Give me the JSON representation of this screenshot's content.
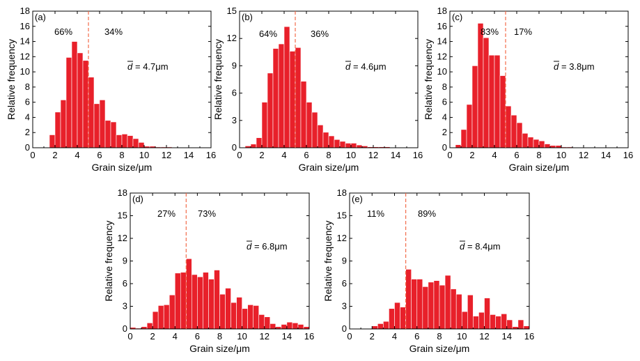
{
  "chart_data": [
    {
      "type": "bar",
      "panel_label": "(a)",
      "xlabel": "Grain size/μm",
      "ylabel": "Relative frequency",
      "xlim": [
        0,
        16
      ],
      "ylim": [
        0,
        18
      ],
      "xticks": [
        0,
        2,
        4,
        6,
        8,
        10,
        12,
        14,
        16
      ],
      "yticks": [
        0,
        2,
        4,
        6,
        8,
        10,
        12,
        14,
        16,
        18
      ],
      "bin_width": 0.5,
      "x": [
        1.75,
        2.25,
        2.75,
        3.25,
        3.75,
        4.25,
        4.75,
        5.25,
        5.75,
        6.25,
        6.75,
        7.25,
        7.75,
        8.25,
        8.75,
        9.25,
        9.75,
        10.25,
        10.75,
        11.25,
        11.75,
        12.25
      ],
      "values": [
        1.7,
        4.7,
        6.3,
        11.9,
        14.0,
        12.5,
        11.5,
        9.3,
        5.8,
        6.3,
        3.6,
        3.4,
        1.7,
        1.8,
        1.6,
        1.2,
        0.7,
        0.2,
        0.2,
        0.1,
        0.1,
        0.1
      ],
      "threshold": 5.0,
      "left_pct": "66%",
      "right_pct": "34%",
      "mean_label": "= 4.7μm",
      "mean_symbol": "d"
    },
    {
      "type": "bar",
      "panel_label": "(b)",
      "xlabel": "Grain size/μm",
      "ylabel": "Relative frequency",
      "xlim": [
        0,
        16
      ],
      "ylim": [
        0,
        15
      ],
      "xticks": [
        0,
        2,
        4,
        6,
        8,
        10,
        12,
        14,
        16
      ],
      "yticks": [
        0,
        3,
        6,
        9,
        12,
        15
      ],
      "bin_width": 0.5,
      "x": [
        0.75,
        1.25,
        1.75,
        2.25,
        2.75,
        3.25,
        3.75,
        4.25,
        4.75,
        5.25,
        5.75,
        6.25,
        6.75,
        7.25,
        7.75,
        8.25,
        8.75,
        9.25,
        9.75,
        10.25,
        10.75,
        11.25,
        11.75,
        12.25,
        12.75,
        13.25
      ],
      "values": [
        0.2,
        0.4,
        1.1,
        5.0,
        8.2,
        10.9,
        11.4,
        13.3,
        10.6,
        11.0,
        7.3,
        5.0,
        3.9,
        2.5,
        1.7,
        1.3,
        0.9,
        0.7,
        0.5,
        0.5,
        0.3,
        0.2,
        0.1,
        0.1,
        0.1,
        0.1
      ],
      "threshold": 5.0,
      "left_pct": "64%",
      "right_pct": "36%",
      "mean_label": "= 4.6μm",
      "mean_symbol": "d"
    },
    {
      "type": "bar",
      "panel_label": "(c)",
      "xlabel": "Grain size/μm",
      "ylabel": "Relative frequency",
      "xlim": [
        0,
        16
      ],
      "ylim": [
        0,
        18
      ],
      "xticks": [
        0,
        2,
        4,
        6,
        8,
        10,
        12,
        14,
        16
      ],
      "yticks": [
        0,
        2,
        4,
        6,
        8,
        10,
        12,
        14,
        16,
        18
      ],
      "bin_width": 0.5,
      "x": [
        0.75,
        1.25,
        1.75,
        2.25,
        2.75,
        3.25,
        3.75,
        4.25,
        4.75,
        5.25,
        5.75,
        6.25,
        6.75,
        7.25,
        7.75,
        8.25,
        8.75,
        9.25,
        9.75,
        10.25,
        10.75
      ],
      "values": [
        0.4,
        2.4,
        5.7,
        10.8,
        16.4,
        14.5,
        12.2,
        12.2,
        9.5,
        5.5,
        4.3,
        3.3,
        1.9,
        1.4,
        1.1,
        0.9,
        0.5,
        0.3,
        0.3,
        0.1,
        0.1
      ],
      "threshold": 5.0,
      "left_pct": "83%",
      "right_pct": "17%",
      "mean_label": "= 3.8μm",
      "mean_symbol": "d"
    },
    {
      "type": "bar",
      "panel_label": "(d)",
      "xlabel": "Grain size/μm",
      "ylabel": "Relative frequency",
      "xlim": [
        0,
        16
      ],
      "ylim": [
        0,
        18
      ],
      "xticks": [
        0,
        2,
        4,
        6,
        8,
        10,
        12,
        14,
        16
      ],
      "yticks": [
        0,
        3,
        6,
        9,
        12,
        15,
        18
      ],
      "bin_width": 0.5,
      "x": [
        0.25,
        0.75,
        1.25,
        1.75,
        2.25,
        2.75,
        3.25,
        3.75,
        4.25,
        4.75,
        5.25,
        5.75,
        6.25,
        6.75,
        7.25,
        7.75,
        8.25,
        8.75,
        9.25,
        9.75,
        10.25,
        10.75,
        11.25,
        11.75,
        12.25,
        12.75,
        13.25,
        13.75,
        14.25,
        14.75,
        15.25,
        15.75
      ],
      "values": [
        0.2,
        0.1,
        0.3,
        0.8,
        2.3,
        3.1,
        3.2,
        4.5,
        7.4,
        7.5,
        9.3,
        7.2,
        6.9,
        7.5,
        6.6,
        7.8,
        4.6,
        5.4,
        3.5,
        4.2,
        2.7,
        3.2,
        3.1,
        1.9,
        1.6,
        0.7,
        0.3,
        0.6,
        0.9,
        0.8,
        0.6,
        0.3
      ],
      "threshold": 5.0,
      "left_pct": "27%",
      "right_pct": "73%",
      "mean_label": "= 6.8μm",
      "mean_symbol": "d"
    },
    {
      "type": "bar",
      "panel_label": "(e)",
      "xlabel": "Grain size/μm",
      "ylabel": "Relative frequency",
      "xlim": [
        0,
        16
      ],
      "ylim": [
        0,
        18
      ],
      "xticks": [
        0,
        2,
        4,
        6,
        8,
        10,
        12,
        14,
        16
      ],
      "yticks": [
        0,
        3,
        6,
        9,
        12,
        15,
        18
      ],
      "bin_width": 0.5,
      "x": [
        2.25,
        2.75,
        3.25,
        3.75,
        4.25,
        4.75,
        5.25,
        5.75,
        6.25,
        6.75,
        7.25,
        7.75,
        8.25,
        8.75,
        9.25,
        9.75,
        10.25,
        10.75,
        11.25,
        11.75,
        12.25,
        12.75,
        13.25,
        13.75,
        14.25,
        14.75,
        15.25,
        15.75
      ],
      "values": [
        0.4,
        0.7,
        1.0,
        2.7,
        3.5,
        2.9,
        7.9,
        6.6,
        6.6,
        5.6,
        6.2,
        6.4,
        5.8,
        7.1,
        5.3,
        4.6,
        2.3,
        4.5,
        1.7,
        2.2,
        4.1,
        1.9,
        1.7,
        2.0,
        1.2,
        0.3,
        1.2,
        0.4
      ],
      "threshold": 5.0,
      "left_pct": "11%",
      "right_pct": "89%",
      "mean_label": "= 8.4μm",
      "mean_symbol": "d"
    }
  ]
}
